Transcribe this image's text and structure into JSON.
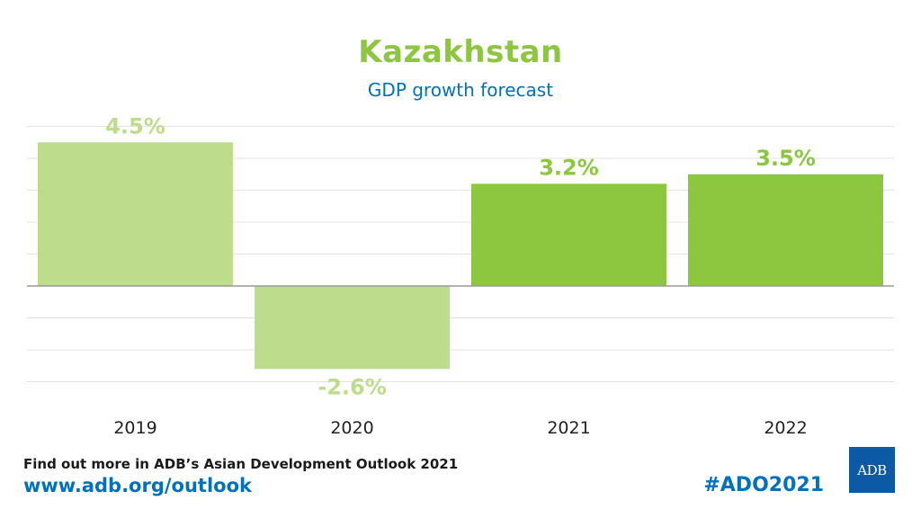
{
  "header": {
    "title": "Kazakhstan",
    "subtitle": "GDP growth forecast"
  },
  "chart_data": {
    "type": "bar",
    "title": "Kazakhstan",
    "subtitle": "GDP growth forecast",
    "categories": [
      "2019",
      "2020",
      "2021",
      "2022"
    ],
    "values": [
      4.5,
      -2.6,
      3.2,
      3.5
    ],
    "labels": [
      "4.5%",
      "-2.6%",
      "3.2%",
      "3.5%"
    ],
    "colors": [
      "#bddd8d",
      "#bddd8d",
      "#8dc63f",
      "#8dc63f"
    ],
    "ylim": [
      -3,
      5
    ],
    "grid": true,
    "xlabel": "",
    "ylabel": ""
  },
  "footer": {
    "line1": "Find out more in ADB’s Asian Development Outlook 2021",
    "url": "www.adb.org/outlook",
    "hashtag": "#ADO2021",
    "logo_text": "ADB"
  },
  "colors": {
    "title": "#8dc63f",
    "subtitle": "#0072bc",
    "actual_bar": "#bddd8d",
    "forecast_bar": "#8dc63f",
    "grid": "#e3e3e3",
    "baseline": "#9a9a9a"
  }
}
